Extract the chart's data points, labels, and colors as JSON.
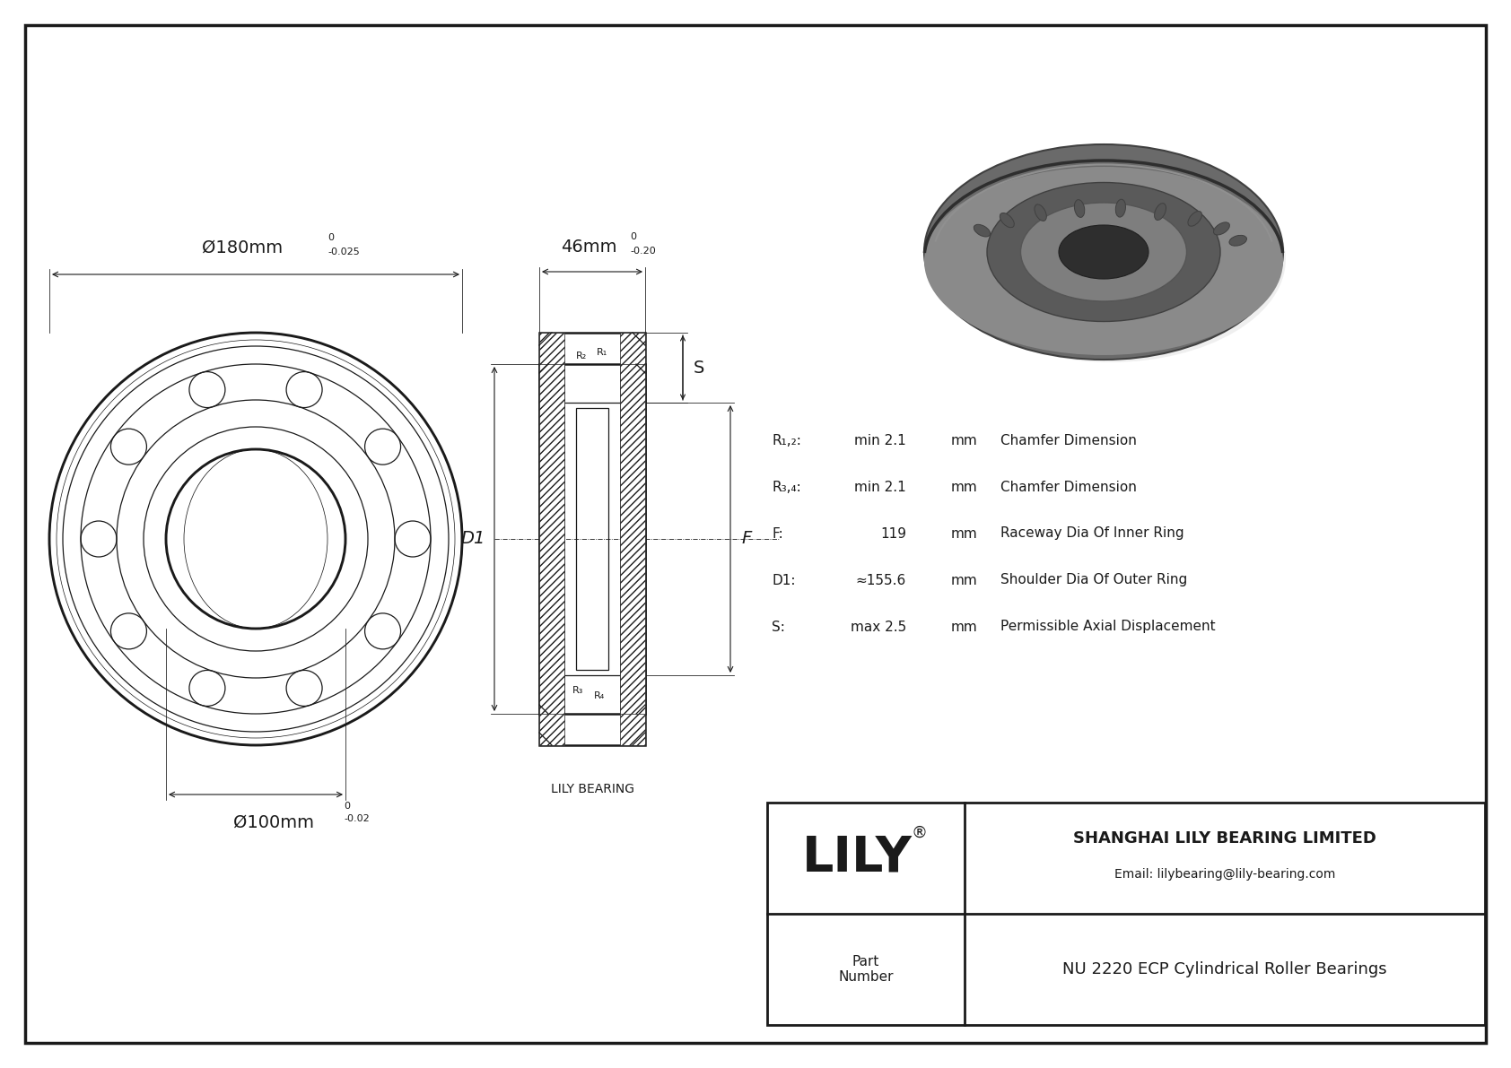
{
  "bg_color": "#ffffff",
  "lc": "#1a1a1a",
  "outer_diam_text": "Ø180mm",
  "outer_tol_top": "0",
  "outer_tol_bot": "-0.025",
  "inner_diam_text": "Ø100mm",
  "inner_tol_top": "0",
  "inner_tol_bot": "-0.02",
  "width_text": "46mm",
  "width_tol_top": "0",
  "width_tol_bot": "-0.20",
  "params": [
    {
      "sym": "R₁,₂:",
      "val": "min 2.1",
      "unit": "mm",
      "desc": "Chamfer Dimension"
    },
    {
      "sym": "R₃,₄:",
      "val": "min 2.1",
      "unit": "mm",
      "desc": "Chamfer Dimension"
    },
    {
      "sym": "F:",
      "val": "119",
      "unit": "mm",
      "desc": "Raceway Dia Of Inner Ring"
    },
    {
      "sym": "D1:",
      "val": "≈155.6",
      "unit": "mm",
      "desc": "Shoulder Dia Of Outer Ring"
    },
    {
      "sym": "S:",
      "val": "max 2.5",
      "unit": "mm",
      "desc": "Permissible Axial Displacement"
    }
  ],
  "company_name": "SHANGHAI LILY BEARING LIMITED",
  "company_email": "Email: lilybearing@lily-bearing.com",
  "part_label": "Part\nNumber",
  "part_number": "NU 2220 ECP Cylindrical Roller Bearings",
  "lily_text": "LILY",
  "lily_bearing_text": "LILY BEARING",
  "label_d1": "D1",
  "label_f": "F",
  "label_s": "S",
  "label_r1": "R₁",
  "label_r2": "R₂",
  "label_r3": "R₃",
  "label_r4": "R₄"
}
